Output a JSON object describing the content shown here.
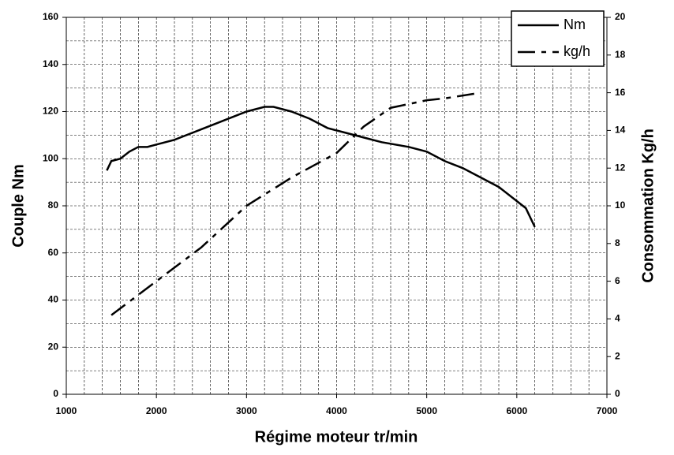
{
  "chart_data": {
    "type": "line",
    "x_label": "Régime moteur tr/min",
    "y_label": "Couple Nm",
    "y2_label": "Consommation Kg/h",
    "xlim": [
      1000,
      7000
    ],
    "xticks": [
      1000,
      2000,
      3000,
      4000,
      5000,
      6000,
      7000
    ],
    "ylim": [
      0,
      160
    ],
    "yticks": [
      0,
      20,
      40,
      60,
      80,
      100,
      120,
      140,
      160
    ],
    "y2lim": [
      0,
      20
    ],
    "y2ticks": [
      0,
      2,
      4,
      6,
      8,
      10,
      12,
      14,
      16,
      18,
      20
    ],
    "grid": true,
    "legend": "top-right",
    "series": [
      {
        "name": "Nm",
        "color": "#000000",
        "style": "solid",
        "x": [
          1450,
          1500,
          1600,
          1700,
          1800,
          1900,
          2000,
          2200,
          2400,
          2600,
          2800,
          3000,
          3200,
          3300,
          3500,
          3700,
          3900,
          4100,
          4300,
          4500,
          4800,
          5000,
          5200,
          5400,
          5600,
          5800,
          6000,
          6100,
          6200
        ],
        "values": [
          95,
          99,
          100,
          103,
          105,
          105,
          106,
          108,
          111,
          114,
          117,
          120,
          122,
          122,
          120,
          117,
          113,
          111,
          109,
          107,
          105,
          103,
          99,
          96,
          92,
          88,
          82,
          79,
          71
        ]
      },
      {
        "name": "kg/h",
        "color": "#000000",
        "style": "dashdot",
        "axis": "y2",
        "x": [
          1500,
          2000,
          2500,
          3000,
          3500,
          4000,
          4300,
          4600,
          5000,
          5200,
          5600
        ],
        "values": [
          4.2,
          6,
          7.8,
          10,
          11.5,
          12.8,
          14.2,
          15.2,
          15.6,
          15.7,
          16
        ]
      }
    ]
  }
}
